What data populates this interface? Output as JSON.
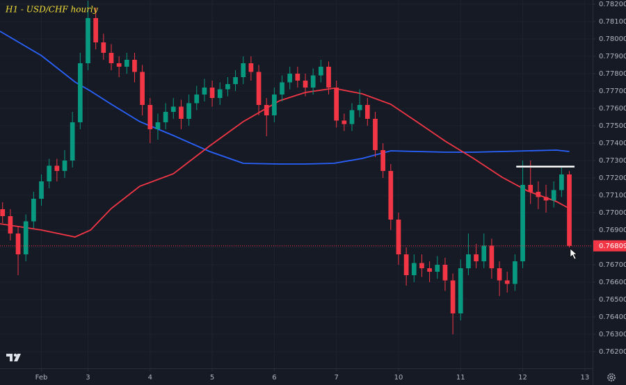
{
  "chart_data": {
    "type": "candlestick",
    "title": "H1 - USD/CHF hourly",
    "x": [
      -9,
      -6,
      -3,
      0,
      3,
      6,
      9,
      12,
      15,
      18,
      21,
      24,
      27,
      30,
      33,
      36,
      39,
      42,
      45,
      48,
      51,
      54,
      57,
      60,
      63,
      66,
      69,
      72,
      75,
      78,
      81,
      84,
      87,
      90,
      93,
      96,
      99,
      102,
      105,
      108,
      111,
      114,
      117,
      120,
      123,
      126,
      129,
      132,
      135,
      138,
      141,
      144,
      147,
      150,
      153,
      156,
      159,
      162,
      165,
      168,
      171,
      174,
      177,
      180,
      183,
      186,
      189,
      192,
      195,
      198,
      201,
      204,
      207,
      210
    ],
    "open": [
      0.7702,
      0.7698,
      0.7688,
      0.7676,
      0.7695,
      0.7708,
      0.7718,
      0.7727,
      0.7724,
      0.773,
      0.7752,
      0.7786,
      0.7812,
      0.7798,
      0.7792,
      0.7786,
      0.7784,
      0.7788,
      0.7781,
      0.7762,
      0.7748,
      0.7752,
      0.7758,
      0.7761,
      0.7754,
      0.7763,
      0.7768,
      0.7772,
      0.7766,
      0.7771,
      0.7774,
      0.7778,
      0.7786,
      0.7781,
      0.7762,
      0.7756,
      0.7768,
      0.7775,
      0.778,
      0.7776,
      0.7772,
      0.7779,
      0.7784,
      0.7772,
      0.7753,
      0.7751,
      0.7759,
      0.7762,
      0.7754,
      0.7736,
      0.7724,
      0.7696,
      0.7676,
      0.7664,
      0.7671,
      0.7668,
      0.7666,
      0.767,
      0.7661,
      0.7642,
      0.7668,
      0.7676,
      0.7672,
      0.7681,
      0.7668,
      0.7661,
      0.7659,
      0.7672,
      0.7716,
      0.7712,
      0.7709,
      0.7707,
      0.7713,
      0.7722
    ],
    "high": [
      0.7706,
      0.7702,
      0.7692,
      0.7699,
      0.7712,
      0.7722,
      0.7731,
      0.7731,
      0.7736,
      0.7758,
      0.7792,
      0.7822,
      0.7818,
      0.7803,
      0.7797,
      0.779,
      0.7792,
      0.7792,
      0.7785,
      0.7766,
      0.7757,
      0.7763,
      0.7766,
      0.7765,
      0.7768,
      0.7773,
      0.7777,
      0.7776,
      0.7775,
      0.7778,
      0.7782,
      0.779,
      0.779,
      0.7785,
      0.7766,
      0.7772,
      0.7779,
      0.7784,
      0.7784,
      0.778,
      0.7783,
      0.7788,
      0.7787,
      0.7776,
      0.7757,
      0.7763,
      0.7771,
      0.7766,
      0.7758,
      0.774,
      0.7728,
      0.77,
      0.768,
      0.7676,
      0.7676,
      0.7672,
      0.7675,
      0.7674,
      0.7665,
      0.7673,
      0.7688,
      0.7682,
      0.7688,
      0.7685,
      0.7672,
      0.7666,
      0.7676,
      0.773,
      0.773,
      0.7718,
      0.7716,
      0.7718,
      0.7726,
      0.7724
    ],
    "low": [
      0.7694,
      0.7684,
      0.7664,
      0.7672,
      0.7691,
      0.7704,
      0.7714,
      0.7718,
      0.772,
      0.7726,
      0.7748,
      0.7782,
      0.7794,
      0.7788,
      0.7782,
      0.7778,
      0.778,
      0.7775,
      0.7756,
      0.774,
      0.7742,
      0.7748,
      0.7754,
      0.7748,
      0.775,
      0.7759,
      0.7764,
      0.7761,
      0.7762,
      0.7767,
      0.777,
      0.7774,
      0.7776,
      0.7756,
      0.7744,
      0.7752,
      0.7764,
      0.7771,
      0.7772,
      0.7767,
      0.7768,
      0.7775,
      0.7768,
      0.7749,
      0.7747,
      0.7747,
      0.7755,
      0.775,
      0.7732,
      0.772,
      0.769,
      0.767,
      0.7658,
      0.766,
      0.7663,
      0.766,
      0.7662,
      0.7655,
      0.763,
      0.7638,
      0.7664,
      0.7668,
      0.7668,
      0.7662,
      0.7652,
      0.7654,
      0.7655,
      0.7668,
      0.7705,
      0.7702,
      0.77,
      0.7703,
      0.7709,
      0.768
    ],
    "close": [
      0.7698,
      0.7688,
      0.7676,
      0.7695,
      0.7708,
      0.7718,
      0.7727,
      0.7724,
      0.773,
      0.7752,
      0.7786,
      0.7812,
      0.7798,
      0.7792,
      0.7786,
      0.7784,
      0.7788,
      0.7781,
      0.7762,
      0.7748,
      0.7752,
      0.7758,
      0.7761,
      0.7754,
      0.7763,
      0.7768,
      0.7772,
      0.7766,
      0.7771,
      0.7774,
      0.7778,
      0.7786,
      0.7781,
      0.7762,
      0.7756,
      0.7768,
      0.7775,
      0.778,
      0.7776,
      0.7772,
      0.7779,
      0.7784,
      0.7772,
      0.7753,
      0.7751,
      0.7759,
      0.7762,
      0.7754,
      0.7736,
      0.7724,
      0.7696,
      0.7676,
      0.7664,
      0.7671,
      0.7668,
      0.7666,
      0.767,
      0.7661,
      0.7642,
      0.7668,
      0.7676,
      0.7672,
      0.7681,
      0.7668,
      0.7661,
      0.7659,
      0.7672,
      0.7716,
      0.7712,
      0.7709,
      0.7707,
      0.7713,
      0.7722,
      0.76809
    ],
    "up_color": "#089981",
    "down_color": "#f23645",
    "lines": [
      {
        "color": "#2962ff",
        "x": [
          -10,
          6,
          19,
          25,
          33,
          44,
          57,
          71,
          84,
          98,
          108,
          119,
          130,
          141,
          151,
          162,
          173,
          184,
          194,
          205,
          210
        ],
        "values": [
          0.78044,
          0.77904,
          0.77752,
          0.777,
          0.77624,
          0.77524,
          0.77444,
          0.77352,
          0.77284,
          0.7728,
          0.7728,
          0.77284,
          0.77312,
          0.77356,
          0.77352,
          0.77348,
          0.77348,
          0.77352,
          0.77356,
          0.7736,
          0.77352
        ]
      },
      {
        "color": "#f23645",
        "x": [
          -10,
          6,
          19,
          25,
          33,
          44,
          57,
          71,
          84,
          98,
          108,
          119,
          130,
          141,
          151,
          162,
          173,
          184,
          194,
          205,
          210
        ],
        "values": [
          0.76936,
          0.769,
          0.7686,
          0.769,
          0.77024,
          0.77152,
          0.77224,
          0.77384,
          0.77524,
          0.77644,
          0.77692,
          0.77716,
          0.77684,
          0.77624,
          0.77524,
          0.77412,
          0.77312,
          0.77204,
          0.77124,
          0.77064,
          0.77024
        ]
      }
    ],
    "level": {
      "value": 0.77265,
      "x": [
        189.5,
        212
      ],
      "color": "#ffffff"
    },
    "last_price": {
      "value": 0.76809,
      "label": "0.76809",
      "color": "#f23645"
    },
    "xlim": [
      -10,
      219
    ],
    "ylim": [
      0.76104,
      0.78224
    ],
    "xticks": [
      {
        "value": 6,
        "label": "Feb"
      },
      {
        "value": 24,
        "label": "3"
      },
      {
        "value": 48,
        "label": "4"
      },
      {
        "value": 72,
        "label": "5"
      },
      {
        "value": 96,
        "label": "6"
      },
      {
        "value": 120,
        "label": "7"
      },
      {
        "value": 144,
        "label": "10"
      },
      {
        "value": 168,
        "label": "11"
      },
      {
        "value": 192,
        "label": "12"
      },
      {
        "value": 216,
        "label": "13"
      }
    ],
    "yticks": [
      {
        "value": 0.762,
        "label": "0.76200"
      },
      {
        "value": 0.763,
        "label": "0.76300"
      },
      {
        "value": 0.764,
        "label": "0.76400"
      },
      {
        "value": 0.765,
        "label": "0.76500"
      },
      {
        "value": 0.766,
        "label": "0.76600"
      },
      {
        "value": 0.767,
        "label": "0.76700"
      },
      {
        "value": 0.768,
        "label": "0.76800"
      },
      {
        "value": 0.769,
        "label": "0.76900"
      },
      {
        "value": 0.77,
        "label": "0.77000"
      },
      {
        "value": 0.771,
        "label": "0.77100"
      },
      {
        "value": 0.772,
        "label": "0.77200"
      },
      {
        "value": 0.773,
        "label": "0.77300"
      },
      {
        "value": 0.774,
        "label": "0.77400"
      },
      {
        "value": 0.775,
        "label": "0.77500"
      },
      {
        "value": 0.776,
        "label": "0.77600"
      },
      {
        "value": 0.777,
        "label": "0.77700"
      },
      {
        "value": 0.778,
        "label": "0.77800"
      },
      {
        "value": 0.779,
        "label": "0.77900"
      },
      {
        "value": 0.78,
        "label": "0.78000"
      },
      {
        "value": 0.781,
        "label": "0.78100"
      },
      {
        "value": 0.782,
        "label": "0.78200"
      }
    ],
    "grid": true
  }
}
